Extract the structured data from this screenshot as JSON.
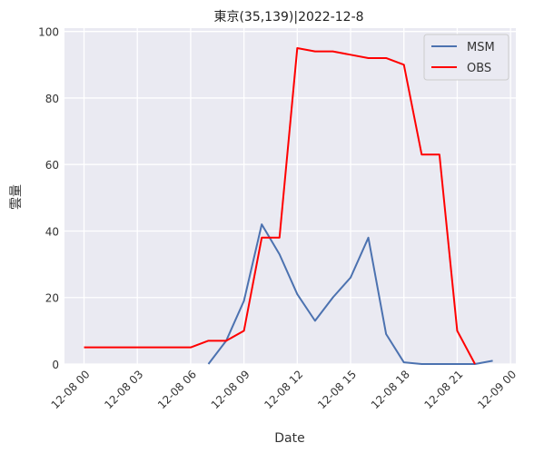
{
  "chart_data": {
    "type": "line",
    "title": "東京(35,139)|2022-12-8",
    "xlabel": "Date",
    "ylabel": "雲量",
    "x_tick_labels": [
      "12-08 00",
      "12-08 03",
      "12-08 06",
      "12-08 09",
      "12-08 12",
      "12-08 15",
      "12-08 18",
      "12-08 21",
      "12-09 00"
    ],
    "x_ticks_hours": [
      0,
      3,
      6,
      9,
      12,
      15,
      18,
      21,
      24
    ],
    "xlim_hours": [
      -1.1,
      24.3
    ],
    "ylim": [
      0,
      101
    ],
    "y_ticks": [
      0,
      20,
      40,
      60,
      80,
      100
    ],
    "grid": true,
    "legend_position": "top-right",
    "series": [
      {
        "name": "MSM",
        "color": "#4c72b0",
        "points": [
          {
            "x": "12-08 07",
            "y": 0
          },
          {
            "x": "12-08 08",
            "y": 7
          },
          {
            "x": "12-08 09",
            "y": 19
          },
          {
            "x": "12-08 10",
            "y": 42
          },
          {
            "x": "12-08 11",
            "y": 33
          },
          {
            "x": "12-08 12",
            "y": 21
          },
          {
            "x": "12-08 13",
            "y": 13
          },
          {
            "x": "12-08 14",
            "y": 20
          },
          {
            "x": "12-08 15",
            "y": 26
          },
          {
            "x": "12-08 16",
            "y": 38
          },
          {
            "x": "12-08 17",
            "y": 9
          },
          {
            "x": "12-08 18",
            "y": 0.5
          },
          {
            "x": "12-08 19",
            "y": 0
          },
          {
            "x": "12-08 20",
            "y": 0
          },
          {
            "x": "12-08 21",
            "y": 0
          },
          {
            "x": "12-08 22",
            "y": 0
          },
          {
            "x": "12-08 23",
            "y": 1
          }
        ]
      },
      {
        "name": "OBS",
        "color": "#ff0000",
        "points": [
          {
            "x": "12-08 00",
            "y": 5
          },
          {
            "x": "12-08 01",
            "y": 5
          },
          {
            "x": "12-08 02",
            "y": 5
          },
          {
            "x": "12-08 03",
            "y": 5
          },
          {
            "x": "12-08 04",
            "y": 5
          },
          {
            "x": "12-08 05",
            "y": 5
          },
          {
            "x": "12-08 06",
            "y": 5
          },
          {
            "x": "12-08 07",
            "y": 7
          },
          {
            "x": "12-08 08",
            "y": 7
          },
          {
            "x": "12-08 09",
            "y": 10
          },
          {
            "x": "12-08 10",
            "y": 38
          },
          {
            "x": "12-08 11",
            "y": 38
          },
          {
            "x": "12-08 12",
            "y": 95
          },
          {
            "x": "12-08 13",
            "y": 94
          },
          {
            "x": "12-08 14",
            "y": 94
          },
          {
            "x": "12-08 15",
            "y": 93
          },
          {
            "x": "12-08 16",
            "y": 92
          },
          {
            "x": "12-08 17",
            "y": 92
          },
          {
            "x": "12-08 18",
            "y": 90
          },
          {
            "x": "12-08 19",
            "y": 63
          },
          {
            "x": "12-08 20",
            "y": 63
          },
          {
            "x": "12-08 21",
            "y": 10
          },
          {
            "x": "12-08 22",
            "y": 0
          }
        ]
      }
    ]
  }
}
